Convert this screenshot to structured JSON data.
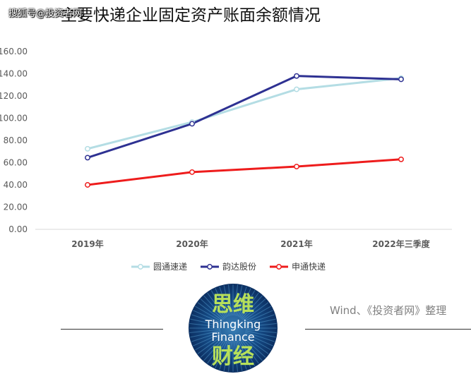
{
  "header": {
    "watermark": "搜狐号@投资者网",
    "title": "主要快递企业固定资产账面余额情况"
  },
  "chart_data": {
    "type": "line",
    "title": "主要快递企业固定资产账面余额情况",
    "categories": [
      "2019年",
      "2020年",
      "2021年",
      "2022年三季度"
    ],
    "y_ticks": [
      "0.00",
      "20.00",
      "40.00",
      "60.00",
      "80.00",
      "100.00",
      "120.00",
      "140.00",
      "160.00"
    ],
    "ylim": [
      0,
      160
    ],
    "grid": false,
    "legend_position": "bottom",
    "series": [
      {
        "name": "圆通速递",
        "values": [
          72.5,
          96.5,
          126,
          136
        ],
        "color": "#b4dde4"
      },
      {
        "name": "韵达股份",
        "values": [
          64.5,
          95,
          138,
          135
        ],
        "color": "#2e3192"
      },
      {
        "name": "申通快递",
        "values": [
          40,
          51.5,
          56.5,
          63
        ],
        "color": "#ee1c1c"
      }
    ]
  },
  "footer": {
    "source": "Wind、《投资者网》整理",
    "logo": {
      "cn_top": "思维",
      "en_line1": "Thingking",
      "en_line2": "Finance",
      "cn_bottom": "财经"
    }
  }
}
